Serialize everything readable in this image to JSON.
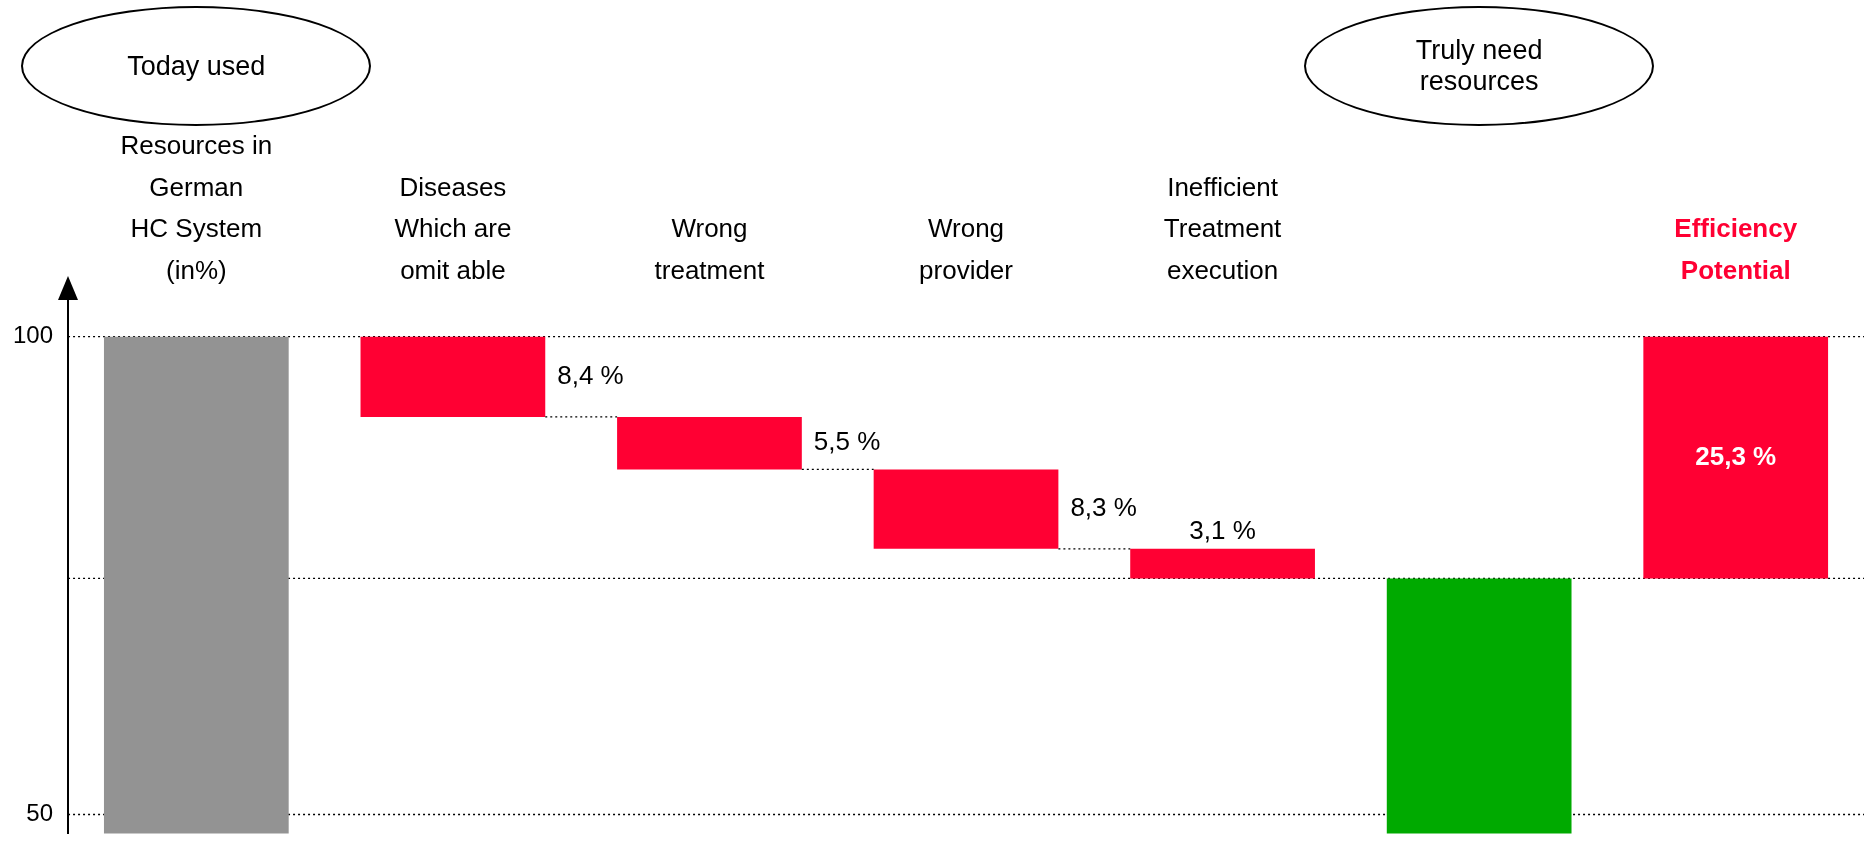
{
  "chart_data": {
    "type": "bar",
    "categories": [
      "Resources in\nGerman\nHC System\n(in%)",
      "Diseases\nWhich are\nomit able",
      "Wrong\ntreatment",
      "Wrong\nprovider",
      "Inefficient\nTreatment\nexecution",
      null,
      "Efficiency\nPotential"
    ],
    "values": [
      100,
      8.4,
      5.5,
      8.3,
      3.1,
      74.7,
      25.3
    ],
    "base": [
      null,
      91.6,
      86.1,
      77.8,
      74.7,
      null,
      74.7
    ],
    "colors": [
      "#939393",
      "#ff0033",
      "#ff0033",
      "#ff0033",
      "#ff0033",
      "#00aa00",
      "#ff0033"
    ],
    "value_labels": [
      null,
      "8,4 %",
      "5,5 %",
      "8,3 %",
      "3,1 %",
      null,
      "25,3 %"
    ],
    "ylim": [
      48,
      104
    ],
    "yticks": [
      100,
      50
    ],
    "annotations": [
      "Today used",
      "Truly need resources"
    ],
    "ref_lines": [
      {
        "axis": "y",
        "value": 100,
        "color": "#000000",
        "line_style": "dotted"
      },
      {
        "axis": "y",
        "value": 74.7,
        "color": "#000000",
        "line_style": "dotted"
      },
      {
        "axis": "y",
        "value": 50,
        "color": "#000000",
        "line_style": "dotted"
      }
    ],
    "legend": false,
    "grid": false
  }
}
